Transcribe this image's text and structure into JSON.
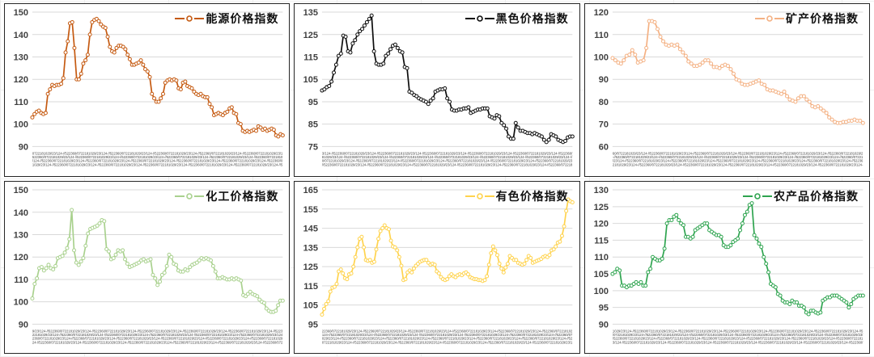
{
  "page": {
    "background": "#ffffff",
    "panel_border_color": "#262626",
    "gridline_color": "#d9d9d9",
    "tick_label_color": "#404040",
    "layout": "2 rows x 3 columns of line charts"
  },
  "chart_data": [
    {
      "type": "line",
      "panel": "top-left",
      "legend": "能源价格指数",
      "color": "#C55A11",
      "marker": "hollow-circle",
      "ylim": [
        90,
        150
      ],
      "yticks": [
        90,
        100,
        110,
        120,
        130,
        140,
        150
      ],
      "grid": true,
      "legend_position": "top-right",
      "x_ticks": "dense rotated date labels (illegible)",
      "values": [
        103,
        104.5,
        105.5,
        106,
        105,
        104.5,
        105,
        113.5,
        115.5,
        117.5,
        117,
        117.5,
        117.5,
        118,
        120.5,
        132,
        137,
        145,
        145.5,
        134,
        120,
        120,
        122.5,
        127,
        128.5,
        131,
        140,
        145.5,
        146.5,
        147,
        146,
        144.5,
        143.5,
        143,
        139,
        134.5,
        132.5,
        132,
        134,
        135,
        135,
        134.5,
        133.5,
        131,
        129,
        126.5,
        126.5,
        127,
        127.5,
        128.5,
        126.5,
        124.5,
        123.5,
        121,
        113.5,
        111.5,
        110,
        110,
        111.5,
        113.5,
        118.5,
        119.5,
        120,
        119.5,
        120,
        119.5,
        116,
        115.5,
        118.5,
        119,
        117,
        116.5,
        116,
        114.5,
        113.5,
        113,
        113.5,
        112.5,
        112,
        112,
        109,
        107.5,
        104,
        104.5,
        105,
        104.5,
        104,
        105,
        105.5,
        107,
        107.5,
        105,
        104.5,
        100.5,
        100,
        97,
        96.5,
        97,
        96.5,
        97,
        97.5,
        97,
        99,
        98.5,
        97.5,
        98,
        97,
        97.5,
        98,
        97.5,
        95,
        94.5,
        95.5,
        95
      ]
    },
    {
      "type": "line",
      "panel": "top-middle",
      "legend": "黑色价格指数",
      "color": "#0d0d0d",
      "marker": "hollow-circle",
      "ylim": [
        75,
        135
      ],
      "yticks": [
        75,
        85,
        95,
        105,
        115,
        125,
        135
      ],
      "grid": true,
      "legend_position": "top-right",
      "x_ticks": "dense rotated date labels (illegible)",
      "values": [
        100,
        100.5,
        101.5,
        102,
        104,
        108,
        111.5,
        115.5,
        116.5,
        124.5,
        124,
        117.5,
        117,
        121,
        122.5,
        125,
        126.5,
        127.5,
        129,
        130.5,
        132,
        133.5,
        117.5,
        112,
        111.5,
        111.5,
        112,
        115.5,
        116.5,
        118.5,
        120,
        120.5,
        119,
        117.5,
        117,
        110.5,
        110,
        99.5,
        99,
        98,
        97.5,
        96.5,
        96,
        95.5,
        95,
        94,
        95.5,
        96.5,
        99.5,
        100,
        100.5,
        100.5,
        101,
        96.5,
        95,
        91.5,
        91,
        91,
        91.5,
        91.5,
        92,
        92,
        92.5,
        90,
        90.5,
        91,
        91.5,
        91.5,
        92,
        92,
        92,
        88.5,
        88,
        87.5,
        89,
        88.5,
        85.5,
        84.5,
        83,
        79.5,
        78.5,
        78.5,
        85.5,
        83.5,
        82,
        82,
        81.5,
        81,
        81,
        80.5,
        81,
        80.5,
        80,
        79.5,
        78,
        77,
        78,
        80.5,
        80,
        79.5,
        78,
        77.5,
        77,
        77.5,
        79,
        79.5,
        79.5
      ]
    },
    {
      "type": "line",
      "panel": "top-right",
      "legend": "矿产价格指数",
      "color": "#F4B183",
      "marker": "hollow-circle",
      "ylim": [
        60,
        120
      ],
      "yticks": [
        60,
        70,
        80,
        90,
        100,
        110,
        120
      ],
      "grid": true,
      "legend_position": "top-right",
      "x_ticks": "dense rotated date labels (illegible)",
      "values": [
        99.5,
        98.5,
        97.5,
        97,
        98.5,
        100.5,
        101,
        103,
        101,
        97.5,
        98,
        98.5,
        104,
        116,
        116,
        115.5,
        112.5,
        109,
        107,
        105.5,
        105,
        105.5,
        105,
        105.5,
        103.5,
        102,
        100.5,
        98,
        97,
        96,
        96,
        96.5,
        97.5,
        98.5,
        98.5,
        97,
        95.5,
        95.5,
        95,
        96,
        96.5,
        96,
        94.5,
        92.5,
        90,
        89.5,
        88,
        87.5,
        87.5,
        88,
        88.5,
        89,
        89.5,
        88,
        87.5,
        85.5,
        85,
        85,
        84.5,
        84,
        83.5,
        84.5,
        82.5,
        81,
        80.5,
        80,
        81.5,
        82.5,
        82.5,
        81,
        80,
        78,
        77.5,
        78,
        77,
        76,
        75,
        73,
        72,
        71,
        70.5,
        70.5,
        71,
        71,
        71.5,
        71.5,
        72,
        71.5,
        71.5,
        70.5
      ]
    },
    {
      "type": "line",
      "panel": "bottom-left",
      "legend": "化工价格指数",
      "color": "#A9D18E",
      "marker": "hollow-circle",
      "ylim": [
        90,
        150
      ],
      "yticks": [
        90,
        100,
        110,
        120,
        130,
        140,
        150
      ],
      "grid": true,
      "legend_position": "top-right",
      "x_ticks": "dense rotated date labels (illegible)",
      "values": [
        101.5,
        108,
        110.5,
        115,
        115.5,
        114,
        115,
        116.5,
        115,
        114.5,
        116,
        119.5,
        120,
        120.5,
        122,
        124,
        128,
        141,
        123,
        117.5,
        116.5,
        118,
        119.5,
        125,
        130.5,
        132.5,
        133,
        133.5,
        134,
        135,
        136.5,
        136,
        123.5,
        122.5,
        119,
        119.5,
        121,
        123,
        122.5,
        123,
        119,
        117,
        115.5,
        116,
        116.5,
        117,
        117.5,
        118.5,
        119,
        118,
        118.5,
        119,
        112,
        110.5,
        107.5,
        109,
        112,
        113,
        116,
        121,
        120,
        117,
        116.5,
        114,
        113.5,
        113.5,
        114.5,
        114,
        115.5,
        116.5,
        117,
        117.5,
        118.5,
        119.5,
        119,
        119.5,
        119,
        118.5,
        116,
        113.5,
        110.5,
        110.5,
        111,
        110.5,
        110,
        110,
        110.5,
        110,
        110.5,
        110,
        109.5,
        103,
        102.5,
        103.5,
        104.5,
        103.5,
        103,
        102.5,
        101,
        100,
        99.5,
        97,
        96,
        95.5,
        95.5,
        96,
        98.5,
        100.5,
        100.5
      ]
    },
    {
      "type": "line",
      "panel": "bottom-middle",
      "legend": "有色价格指数",
      "color": "#FFD34D",
      "marker": "hollow-circle",
      "ylim": [
        95,
        165
      ],
      "yticks": [
        95,
        105,
        115,
        125,
        135,
        145,
        155,
        165
      ],
      "grid": true,
      "legend_position": "top-right",
      "x_ticks": "dense rotated date labels (illegible)",
      "values": [
        100,
        103,
        105.5,
        107,
        112,
        114,
        114.5,
        116,
        122.5,
        123.5,
        121.5,
        119,
        118.5,
        121,
        121.5,
        125,
        130,
        135,
        139.5,
        140.5,
        135,
        128.5,
        128,
        128.5,
        127,
        127.5,
        134,
        139.5,
        143.5,
        145,
        146.5,
        145,
        144.5,
        138.5,
        135.5,
        135,
        133.5,
        130,
        125.5,
        118,
        118.5,
        122,
        123,
        122,
        124,
        125.5,
        126.5,
        127.5,
        128,
        128.5,
        128.5,
        127,
        126,
        126.5,
        126,
        122.5,
        121.5,
        119.5,
        118.5,
        118,
        118.5,
        120,
        121,
        120,
        119.5,
        120.5,
        121,
        120.5,
        121.5,
        122,
        121,
        119.5,
        119,
        118.5,
        118.5,
        118,
        118,
        117.5,
        118,
        120,
        126,
        132,
        135.5,
        133.5,
        131,
        126.5,
        124,
        122,
        124.5,
        126.5,
        130.5,
        129.5,
        128.5,
        128.5,
        127,
        126.5,
        126,
        126.5,
        128.5,
        130.5,
        129.5,
        127,
        127.5,
        128,
        128.5,
        129,
        130,
        130.5,
        130,
        131,
        133.5,
        134,
        135.5,
        137.5,
        138,
        141,
        146,
        154,
        160,
        159,
        158.5
      ]
    },
    {
      "type": "line",
      "panel": "bottom-right",
      "legend": "农产品价格指数",
      "color": "#2EA44F",
      "marker": "hollow-circle",
      "ylim": [
        90,
        130
      ],
      "yticks": [
        90,
        95,
        100,
        105,
        110,
        115,
        120,
        125,
        130
      ],
      "grid": true,
      "legend_position": "top-right",
      "x_ticks": "dense rotated date labels (illegible)",
      "values": [
        105,
        105.5,
        106.5,
        106,
        101.5,
        101.5,
        101,
        101.5,
        101.5,
        102,
        102.5,
        102,
        102.5,
        101.5,
        101.5,
        105.5,
        106.5,
        110,
        109.5,
        109,
        109,
        109.5,
        112.5,
        120,
        121,
        121,
        122,
        122.5,
        121,
        120,
        119.5,
        116,
        116,
        115.5,
        116,
        118,
        118.5,
        119,
        119.5,
        120,
        120,
        118,
        117.5,
        117,
        116.5,
        116.5,
        116,
        113.5,
        113,
        113,
        113.5,
        114.5,
        115,
        115.5,
        118,
        120,
        122.5,
        123.5,
        125.5,
        126,
        116.5,
        115.5,
        114,
        113,
        110,
        108,
        105.5,
        102,
        101.5,
        101,
        99,
        98.5,
        97,
        96.5,
        96.5,
        96,
        97,
        96.5,
        96.5,
        95.5,
        95.5,
        95,
        93.5,
        93,
        94,
        94,
        93.5,
        93.2,
        93.5,
        97,
        97.5,
        98,
        98,
        98.5,
        98.5,
        98.5,
        98,
        97.5,
        97,
        96.5,
        95,
        96,
        97.5,
        98,
        98.5,
        98.5,
        98.5
      ]
    }
  ]
}
